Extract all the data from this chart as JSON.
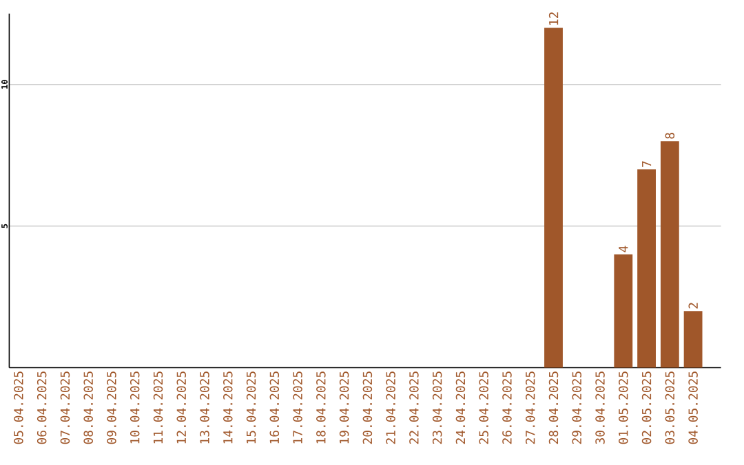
{
  "chart_data": {
    "type": "bar",
    "categories": [
      "05.04.2025",
      "06.04.2025",
      "07.04.2025",
      "08.04.2025",
      "09.04.2025",
      "10.04.2025",
      "11.04.2025",
      "12.04.2025",
      "13.04.2025",
      "14.04.2025",
      "15.04.2025",
      "16.04.2025",
      "17.04.2025",
      "18.04.2025",
      "19.04.2025",
      "20.04.2025",
      "21.04.2025",
      "22.04.2025",
      "23.04.2025",
      "24.04.2025",
      "25.04.2025",
      "26.04.2025",
      "27.04.2025",
      "28.04.2025",
      "29.04.2025",
      "30.04.2025",
      "01.05.2025",
      "02.05.2025",
      "03.05.2025",
      "04.05.2025"
    ],
    "values": [
      0,
      0,
      0,
      0,
      0,
      0,
      0,
      0,
      0,
      0,
      0,
      0,
      0,
      0,
      0,
      0,
      0,
      0,
      0,
      0,
      0,
      0,
      0,
      12,
      0,
      0,
      4,
      7,
      8,
      2
    ],
    "value_labels": [
      null,
      null,
      null,
      null,
      null,
      null,
      null,
      null,
      null,
      null,
      null,
      null,
      null,
      null,
      null,
      null,
      null,
      null,
      null,
      null,
      null,
      null,
      null,
      "12",
      null,
      null,
      "4",
      "7",
      "8",
      "2"
    ],
    "color": "#a0572a",
    "ylim": [
      0,
      12.5
    ],
    "yticks": [
      5,
      10
    ],
    "grid": "y"
  }
}
